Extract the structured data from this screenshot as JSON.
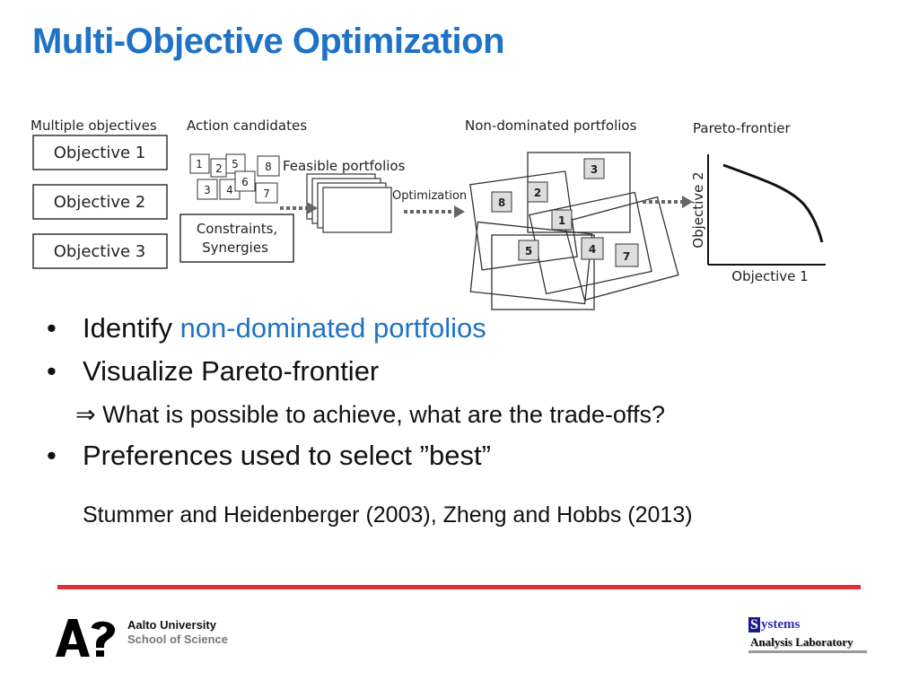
{
  "slide": {
    "title": "Multi-Objective Optimization"
  },
  "diagram": {
    "multiple_objectives": {
      "heading": "Multiple objectives",
      "items": [
        "Objective 1",
        "Objective 2",
        "Objective 3"
      ]
    },
    "action_candidates": {
      "heading": "Action candidates",
      "numbers": [
        "1",
        "2",
        "5",
        "8",
        "3",
        "4",
        "6",
        "7"
      ],
      "constraints_line1": "Constraints,",
      "constraints_line2": "Synergies"
    },
    "feasible_label": "Feasible portfolios",
    "optimization_label": "Optimization",
    "non_dominated": {
      "heading": "Non-dominated  portfolios",
      "numbers": [
        "3",
        "8",
        "2",
        "1",
        "5",
        "4",
        "7"
      ]
    },
    "pareto": {
      "heading": "Pareto-frontier",
      "x_label": "Objective 1",
      "y_label": "Objective 2"
    }
  },
  "bullets": {
    "b1_prefix": "Identify ",
    "b1_highlight": "non-dominated portfolios",
    "b2": "Visualize Pareto-frontier",
    "b2_sub": "⇒ What is possible to achieve, what are the trade-offs?",
    "b3": "Preferences used to select ”best”",
    "bullet_char": "•"
  },
  "reference": "Stummer and Heidenberger (2003), Zheng and Hobbs (2013)",
  "footer": {
    "aalto_name": "Aalto University",
    "aalto_school": "School of Science",
    "sal_s": "S",
    "sal_rest": "ystems",
    "sal_line2": "Analysis Laboratory"
  },
  "colors": {
    "title": "#1f73c7",
    "highlight": "#1f73c7",
    "rule": "#e0313b"
  }
}
